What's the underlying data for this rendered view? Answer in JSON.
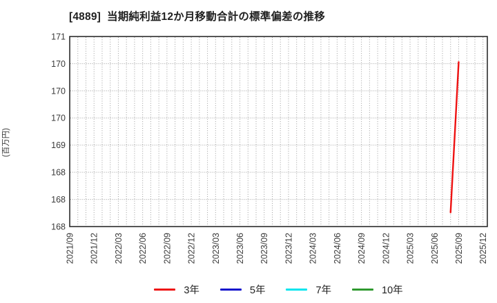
{
  "page": {
    "background": "#ffffff"
  },
  "chart_data": {
    "type": "line",
    "title": "[4889]  当期純利益12か月移動合計の標準偏差の推移",
    "ylabel": "(百万円)",
    "xlabel": "",
    "ylim": [
      167.5,
      171.0
    ],
    "ytick_step": 0.5,
    "ytick_labels_top_to_bottom": [
      "171",
      "170",
      "170",
      "170",
      "169",
      "168",
      "168",
      "168"
    ],
    "x_start": "2021/09",
    "x_end": "2025/12",
    "xtick_labels": [
      "2021/09",
      "2021/12",
      "2022/03",
      "2022/06",
      "2022/09",
      "2022/12",
      "2023/03",
      "2023/06",
      "2023/09",
      "2023/12",
      "2024/03",
      "2024/06",
      "2024/09",
      "2024/12",
      "2025/03",
      "2025/06",
      "2025/09",
      "2025/12"
    ],
    "grid": {
      "show": true,
      "vertical_interval": "monthly",
      "horizontal_interval": 0.5,
      "style": "dotted",
      "color": "#9b9b9b"
    },
    "axis_frame_color": "#2b2b2b",
    "tick_label_color": "#3a3a3a",
    "legend": {
      "position": "bottom",
      "entries": [
        "3年",
        "5年",
        "7年",
        "10年"
      ]
    },
    "series": [
      {
        "name": "3年",
        "color": "#ee1111",
        "points": [
          {
            "x": "2025/08",
            "y": 167.76
          },
          {
            "x": "2025/09",
            "y": 170.53
          }
        ]
      },
      {
        "name": "5年",
        "color": "#1111cc",
        "points": []
      },
      {
        "name": "7年",
        "color": "#00e5ee",
        "points": []
      },
      {
        "name": "10年",
        "color": "#2e992e",
        "points": []
      }
    ]
  }
}
